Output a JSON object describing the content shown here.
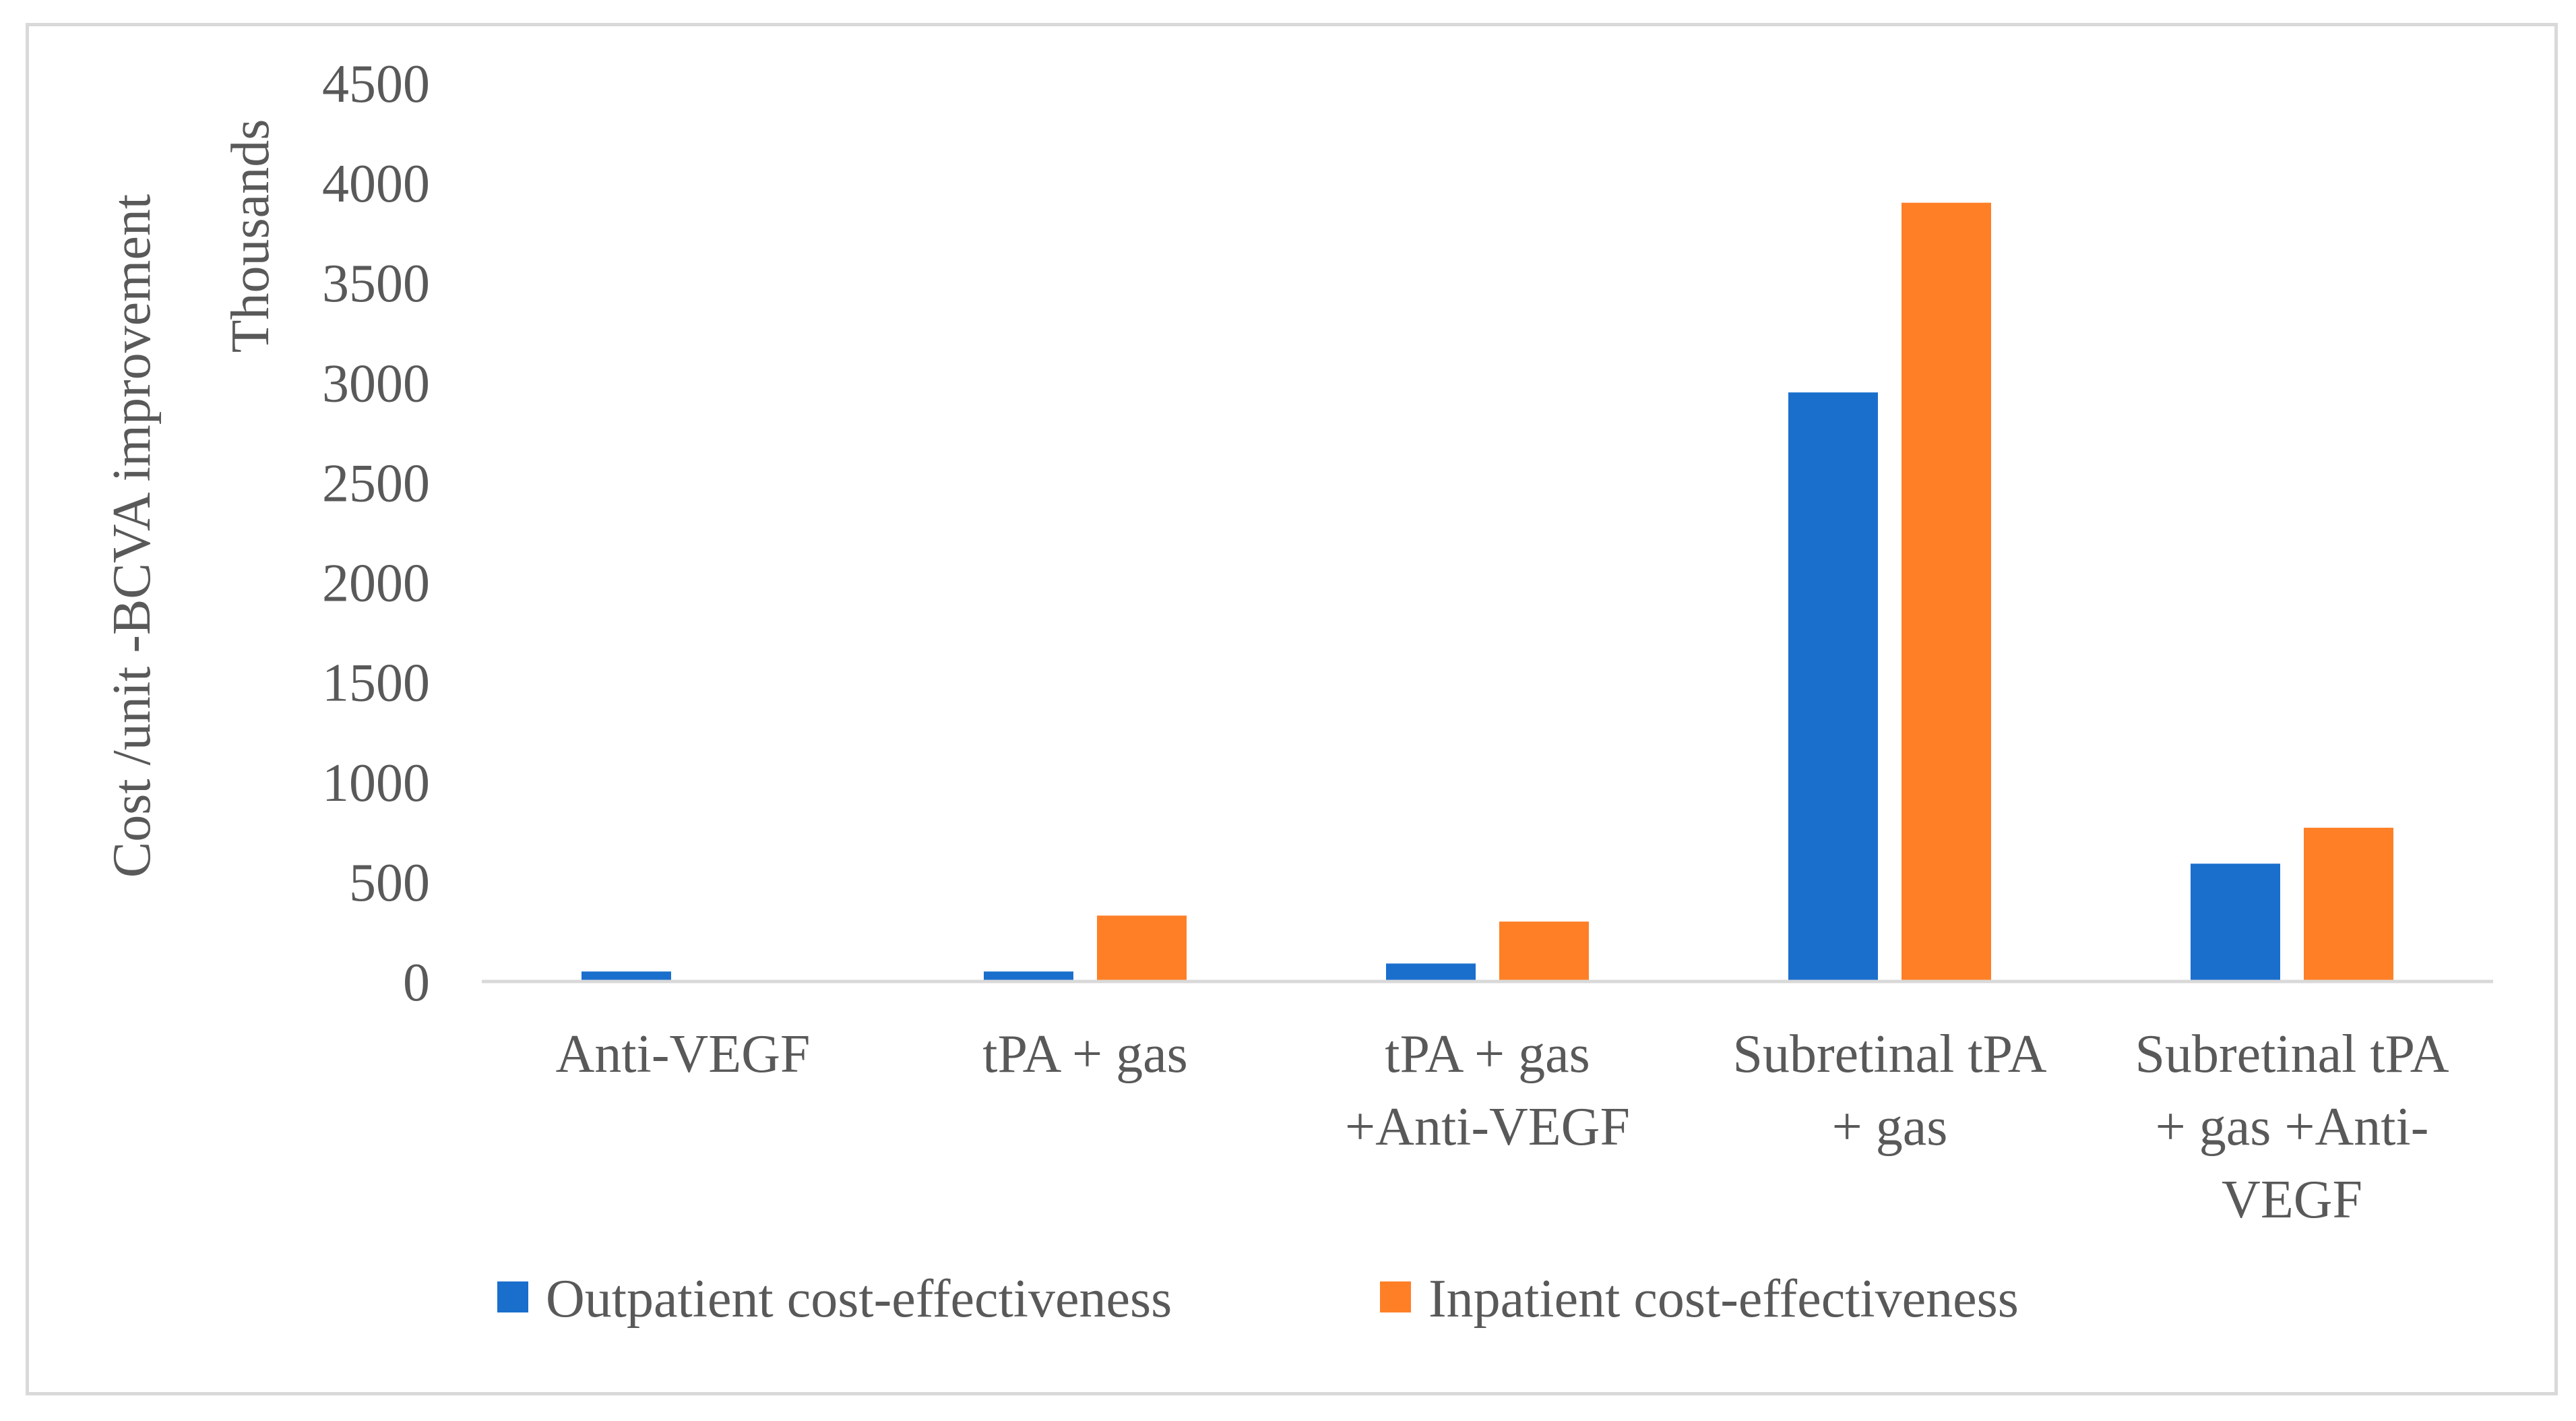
{
  "chart_data": {
    "type": "bar",
    "title": "",
    "xlabel": "",
    "ylabel": "Cost /unit -BCVA improvement",
    "y_units_label": "Thousands",
    "ylim": [
      0,
      4500
    ],
    "yticks": [
      0,
      500,
      1000,
      1500,
      2000,
      2500,
      3000,
      3500,
      4000,
      4500
    ],
    "grid": false,
    "legend_position": "bottom",
    "categories": [
      [
        "Anti-VEGF"
      ],
      [
        "tPA + gas"
      ],
      [
        "tPA + gas",
        "+Anti-VEGF"
      ],
      [
        "Subretinal tPA",
        "+ gas"
      ],
      [
        "Subretinal tPA",
        "+ gas +Anti-",
        "VEGF"
      ]
    ],
    "series": [
      {
        "name": "Outpatient cost-effectiveness",
        "color": "#1a6fcc",
        "values": [
          50,
          50,
          90,
          2950,
          590
        ]
      },
      {
        "name": "Inpatient cost-effectiveness",
        "color": "#ff7f27",
        "values": [
          0,
          330,
          300,
          3900,
          770
        ]
      }
    ]
  }
}
